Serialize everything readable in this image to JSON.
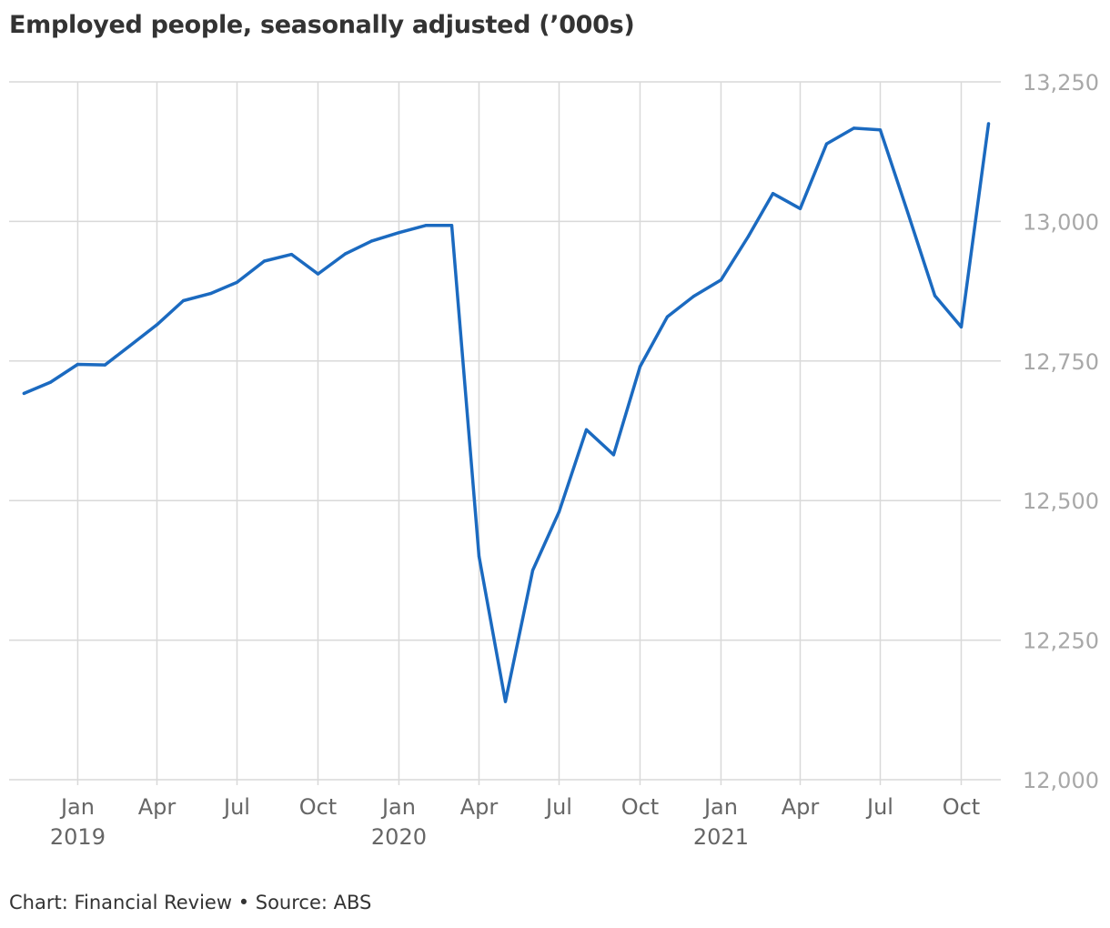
{
  "title": "Employed people, seasonally adjusted (’000s)",
  "source": "Chart: Financial Review • Source: ABS",
  "colors": {
    "line": "#1b6ac0",
    "grid": "#d9d9d9",
    "tick_y": "#a8a8a8",
    "tick_x": "#666666",
    "text": "#333333"
  },
  "chart_data": {
    "type": "line",
    "title": "Employed people, seasonally adjusted (’000s)",
    "xlabel": "",
    "ylabel": "",
    "ylim": [
      12000,
      13250
    ],
    "yticks": [
      12000,
      12250,
      12500,
      12750,
      13000,
      13250
    ],
    "ytick_labels": [
      "12,000",
      "12,250",
      "12,500",
      "12,750",
      "13,000",
      "13,250"
    ],
    "xlim": [
      "2018-10-15",
      "2021-11-15"
    ],
    "xticks": [
      {
        "date": "2019-01-01",
        "label": "Jan",
        "year": "2019"
      },
      {
        "date": "2019-04-01",
        "label": "Apr",
        "year": ""
      },
      {
        "date": "2019-07-01",
        "label": "Jul",
        "year": ""
      },
      {
        "date": "2019-10-01",
        "label": "Oct",
        "year": ""
      },
      {
        "date": "2020-01-01",
        "label": "Jan",
        "year": "2020"
      },
      {
        "date": "2020-04-01",
        "label": "Apr",
        "year": ""
      },
      {
        "date": "2020-07-01",
        "label": "Jul",
        "year": ""
      },
      {
        "date": "2020-10-01",
        "label": "Oct",
        "year": ""
      },
      {
        "date": "2021-01-01",
        "label": "Jan",
        "year": "2021"
      },
      {
        "date": "2021-04-01",
        "label": "Apr",
        "year": ""
      },
      {
        "date": "2021-07-01",
        "label": "Jul",
        "year": ""
      },
      {
        "date": "2021-10-01",
        "label": "Oct",
        "year": ""
      }
    ],
    "grid": true,
    "series": [
      {
        "values": [
          {
            "x": "2018-11-01",
            "y": 12692
          },
          {
            "x": "2018-12-01",
            "y": 12712
          },
          {
            "x": "2019-01-01",
            "y": 12744
          },
          {
            "x": "2019-02-01",
            "y": 12743
          },
          {
            "x": "2019-03-01",
            "y": 12777
          },
          {
            "x": "2019-04-01",
            "y": 12815
          },
          {
            "x": "2019-05-01",
            "y": 12858
          },
          {
            "x": "2019-06-01",
            "y": 12871
          },
          {
            "x": "2019-07-01",
            "y": 12891
          },
          {
            "x": "2019-08-01",
            "y": 12929
          },
          {
            "x": "2019-09-01",
            "y": 12941
          },
          {
            "x": "2019-10-01",
            "y": 12906
          },
          {
            "x": "2019-11-01",
            "y": 12942
          },
          {
            "x": "2019-12-01",
            "y": 12965
          },
          {
            "x": "2020-01-01",
            "y": 12980
          },
          {
            "x": "2020-02-01",
            "y": 12993
          },
          {
            "x": "2020-03-01",
            "y": 12993
          },
          {
            "x": "2020-04-01",
            "y": 12400
          },
          {
            "x": "2020-05-01",
            "y": 12140
          },
          {
            "x": "2020-06-01",
            "y": 12375
          },
          {
            "x": "2020-07-01",
            "y": 12480
          },
          {
            "x": "2020-08-01",
            "y": 12627
          },
          {
            "x": "2020-09-01",
            "y": 12582
          },
          {
            "x": "2020-10-01",
            "y": 12740
          },
          {
            "x": "2020-11-01",
            "y": 12829
          },
          {
            "x": "2020-12-01",
            "y": 12866
          },
          {
            "x": "2021-01-01",
            "y": 12895
          },
          {
            "x": "2021-02-01",
            "y": 12973
          },
          {
            "x": "2021-03-01",
            "y": 13050
          },
          {
            "x": "2021-04-01",
            "y": 13023
          },
          {
            "x": "2021-05-01",
            "y": 13139
          },
          {
            "x": "2021-06-01",
            "y": 13167
          },
          {
            "x": "2021-07-01",
            "y": 13164
          },
          {
            "x": "2021-08-01",
            "y": 13017
          },
          {
            "x": "2021-09-01",
            "y": 12867
          },
          {
            "x": "2021-10-01",
            "y": 12811
          },
          {
            "x": "2021-11-01",
            "y": 13175
          }
        ]
      }
    ]
  }
}
